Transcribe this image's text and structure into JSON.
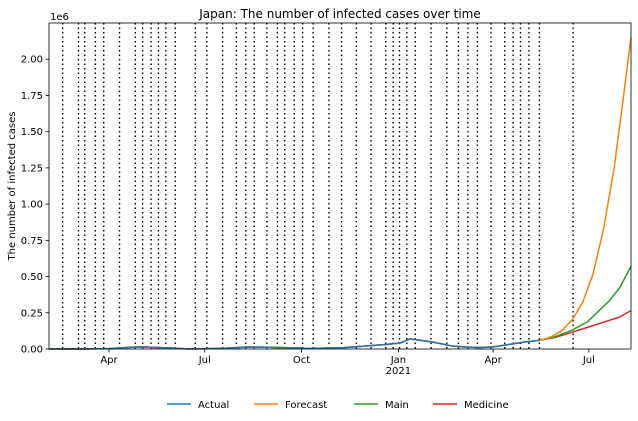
{
  "chart_data": {
    "type": "line",
    "title": "Japan: The number of infected cases over time",
    "xlabel": "",
    "ylabel": "The number of infected cases",
    "y_multiplier_label": "1e6",
    "y_scale_factor": 1000000,
    "ylim": [
      0,
      2250000
    ],
    "xlim": [
      "2020-02-04",
      "2021-08-10"
    ],
    "grid": false,
    "legend_position": "bottom-center",
    "x_ticks": [
      {
        "date": "2020-04-01",
        "label": "Apr",
        "sublabel": ""
      },
      {
        "date": "2020-07-01",
        "label": "Jul",
        "sublabel": ""
      },
      {
        "date": "2020-10-01",
        "label": "Oct",
        "sublabel": ""
      },
      {
        "date": "2021-01-01",
        "label": "Jan",
        "sublabel": "2021"
      },
      {
        "date": "2021-04-01",
        "label": "Apr",
        "sublabel": ""
      },
      {
        "date": "2021-07-01",
        "label": "Jul",
        "sublabel": ""
      }
    ],
    "y_ticks": [
      0,
      250000,
      500000,
      750000,
      1000000,
      1250000,
      1500000,
      1750000,
      2000000
    ],
    "y_tick_labels": [
      "0.00",
      "0.25",
      "0.50",
      "0.75",
      "1.00",
      "1.25",
      "1.50",
      "1.75",
      "2.00"
    ],
    "change_dates": [
      "2020-02-17",
      "2020-03-03",
      "2020-03-09",
      "2020-03-19",
      "2020-03-27",
      "2020-04-11",
      "2020-04-26",
      "2020-05-03",
      "2020-05-11",
      "2020-05-18",
      "2020-05-25",
      "2020-06-03",
      "2020-06-22",
      "2020-07-03",
      "2020-07-18",
      "2020-07-31",
      "2020-08-09",
      "2020-08-17",
      "2020-08-29",
      "2020-09-08",
      "2020-09-15",
      "2020-09-24",
      "2020-10-02",
      "2020-10-12",
      "2020-10-27",
      "2020-11-08",
      "2020-11-22",
      "2020-12-06",
      "2020-12-20",
      "2020-12-27",
      "2021-01-02",
      "2021-01-09",
      "2021-01-17",
      "2021-02-01",
      "2021-02-16",
      "2021-02-27",
      "2021-03-08",
      "2021-03-17",
      "2021-03-30",
      "2021-04-12",
      "2021-04-20",
      "2021-04-27",
      "2021-05-05",
      "2021-05-15",
      "2021-06-16"
    ],
    "series": [
      {
        "name": "Actual",
        "color": "#1f77b4",
        "points": [
          [
            "2020-02-04",
            20
          ],
          [
            "2020-03-01",
            250
          ],
          [
            "2020-04-01",
            2300
          ],
          [
            "2020-04-20",
            11000
          ],
          [
            "2020-05-01",
            14500
          ],
          [
            "2020-05-20",
            9500
          ],
          [
            "2020-06-15",
            1000
          ],
          [
            "2020-07-01",
            1800
          ],
          [
            "2020-07-20",
            5500
          ],
          [
            "2020-08-10",
            13500
          ],
          [
            "2020-09-01",
            12500
          ],
          [
            "2020-10-01",
            6000
          ],
          [
            "2020-10-20",
            5500
          ],
          [
            "2020-11-10",
            9500
          ],
          [
            "2020-12-01",
            21000
          ],
          [
            "2020-12-20",
            31000
          ],
          [
            "2021-01-03",
            42000
          ],
          [
            "2021-01-12",
            70000
          ],
          [
            "2021-01-20",
            62000
          ],
          [
            "2021-02-05",
            45000
          ],
          [
            "2021-02-20",
            22000
          ],
          [
            "2021-03-05",
            14000
          ],
          [
            "2021-03-20",
            10000
          ],
          [
            "2021-04-01",
            15000
          ],
          [
            "2021-04-15",
            30000
          ],
          [
            "2021-05-01",
            48000
          ],
          [
            "2021-05-15",
            60000
          ]
        ]
      },
      {
        "name": "Forecast",
        "color": "#ff7f0e",
        "points": [
          [
            "2020-02-04",
            20
          ],
          [
            "2020-03-01",
            250
          ],
          [
            "2020-04-01",
            2300
          ],
          [
            "2020-04-20",
            11000
          ],
          [
            "2020-05-01",
            14500
          ],
          [
            "2020-05-20",
            9500
          ],
          [
            "2020-06-15",
            1000
          ],
          [
            "2020-07-01",
            1800
          ],
          [
            "2020-07-20",
            5500
          ],
          [
            "2020-08-10",
            13500
          ],
          [
            "2020-09-01",
            12500
          ],
          [
            "2020-10-01",
            6000
          ],
          [
            "2020-10-20",
            5500
          ],
          [
            "2020-11-10",
            9500
          ],
          [
            "2020-12-01",
            21000
          ],
          [
            "2020-12-20",
            31000
          ],
          [
            "2021-01-03",
            42000
          ],
          [
            "2021-01-12",
            70000
          ],
          [
            "2021-01-20",
            62000
          ],
          [
            "2021-02-05",
            45000
          ],
          [
            "2021-02-20",
            22000
          ],
          [
            "2021-03-05",
            14000
          ],
          [
            "2021-03-20",
            10000
          ],
          [
            "2021-04-01",
            15000
          ],
          [
            "2021-04-15",
            30000
          ],
          [
            "2021-05-01",
            48000
          ],
          [
            "2021-05-15",
            60000
          ],
          [
            "2021-05-25",
            80000
          ],
          [
            "2021-06-05",
            125000
          ],
          [
            "2021-06-15",
            200000
          ],
          [
            "2021-06-25",
            320000
          ],
          [
            "2021-07-05",
            520000
          ],
          [
            "2021-07-15",
            830000
          ],
          [
            "2021-07-25",
            1250000
          ],
          [
            "2021-08-03",
            1750000
          ],
          [
            "2021-08-10",
            2150000
          ]
        ]
      },
      {
        "name": "Main",
        "color": "#2ca02c",
        "points": [
          [
            "2020-02-04",
            20
          ],
          [
            "2020-03-01",
            250
          ],
          [
            "2020-04-01",
            2300
          ],
          [
            "2020-04-20",
            11000
          ],
          [
            "2020-05-01",
            14500
          ],
          [
            "2020-05-20",
            9500
          ],
          [
            "2020-06-15",
            1000
          ],
          [
            "2020-07-01",
            1800
          ],
          [
            "2020-07-20",
            5500
          ],
          [
            "2020-08-10",
            13500
          ],
          [
            "2020-09-01",
            12500
          ],
          [
            "2020-10-01",
            6000
          ],
          [
            "2020-10-20",
            5500
          ],
          [
            "2020-11-10",
            9500
          ],
          [
            "2020-12-01",
            21000
          ],
          [
            "2020-12-20",
            31000
          ],
          [
            "2021-01-03",
            42000
          ],
          [
            "2021-01-12",
            70000
          ],
          [
            "2021-01-20",
            62000
          ],
          [
            "2021-02-05",
            45000
          ],
          [
            "2021-02-20",
            22000
          ],
          [
            "2021-03-05",
            14000
          ],
          [
            "2021-03-20",
            10000
          ],
          [
            "2021-04-01",
            15000
          ],
          [
            "2021-04-15",
            30000
          ],
          [
            "2021-05-01",
            48000
          ],
          [
            "2021-05-15",
            60000
          ],
          [
            "2021-05-30",
            85000
          ],
          [
            "2021-06-15",
            130000
          ],
          [
            "2021-06-30",
            190000
          ],
          [
            "2021-07-10",
            260000
          ],
          [
            "2021-07-20",
            330000
          ],
          [
            "2021-07-30",
            420000
          ],
          [
            "2021-08-10",
            570000
          ]
        ]
      },
      {
        "name": "Medicine",
        "color": "#d62728",
        "points": [
          [
            "2020-02-04",
            20
          ],
          [
            "2020-03-01",
            250
          ],
          [
            "2020-04-01",
            2300
          ],
          [
            "2020-04-20",
            11000
          ],
          [
            "2020-05-01",
            14500
          ],
          [
            "2020-05-20",
            9500
          ],
          [
            "2020-06-15",
            1000
          ],
          [
            "2020-07-01",
            1800
          ],
          [
            "2020-07-20",
            5500
          ],
          [
            "2020-08-10",
            13500
          ],
          [
            "2020-09-01",
            12500
          ],
          [
            "2020-10-01",
            6000
          ],
          [
            "2020-10-20",
            5500
          ],
          [
            "2020-11-10",
            9500
          ],
          [
            "2020-12-01",
            21000
          ],
          [
            "2020-12-20",
            31000
          ],
          [
            "2021-01-03",
            42000
          ],
          [
            "2021-01-12",
            70000
          ],
          [
            "2021-01-20",
            62000
          ],
          [
            "2021-02-05",
            45000
          ],
          [
            "2021-02-20",
            22000
          ],
          [
            "2021-03-05",
            14000
          ],
          [
            "2021-03-20",
            10000
          ],
          [
            "2021-04-01",
            15000
          ],
          [
            "2021-04-15",
            30000
          ],
          [
            "2021-05-01",
            48000
          ],
          [
            "2021-05-15",
            60000
          ],
          [
            "2021-05-30",
            80000
          ],
          [
            "2021-06-15",
            115000
          ],
          [
            "2021-06-30",
            150000
          ],
          [
            "2021-07-15",
            185000
          ],
          [
            "2021-07-30",
            220000
          ],
          [
            "2021-08-10",
            265000
          ]
        ]
      }
    ]
  }
}
